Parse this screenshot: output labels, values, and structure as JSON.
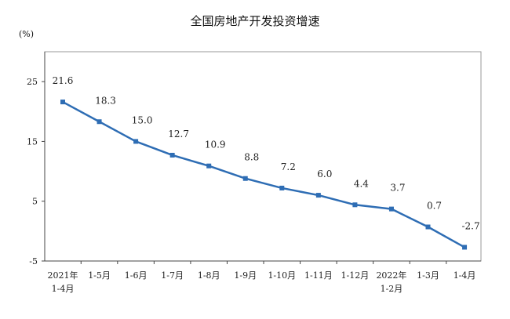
{
  "chart_data": {
    "type": "line",
    "title": "全国房地产开发投资增速",
    "unit": "(%)",
    "categories": [
      "2021年\n1-4月",
      "1-5月",
      "1-6月",
      "1-7月",
      "1-8月",
      "1-9月",
      "1-10月",
      "1-11月",
      "1-12月",
      "2022年\n1-2月",
      "1-3月",
      "1-4月"
    ],
    "series": [
      {
        "values": [
          21.6,
          18.3,
          15.0,
          12.7,
          10.9,
          8.8,
          7.2,
          6.0,
          4.4,
          3.7,
          0.7,
          -2.7
        ],
        "labels": [
          "21.6",
          "18.3",
          "15.0",
          "12.7",
          "10.9",
          "8.8",
          "7.2",
          "6.0",
          "4.4",
          "3.7",
          "0.7",
          "-2.7"
        ]
      }
    ],
    "ylim": [
      -5,
      30
    ],
    "yticks": [
      "25",
      "15",
      "5",
      "-5"
    ],
    "grid": false,
    "line_color": "#2e6db4",
    "axis_color": "#444444"
  }
}
